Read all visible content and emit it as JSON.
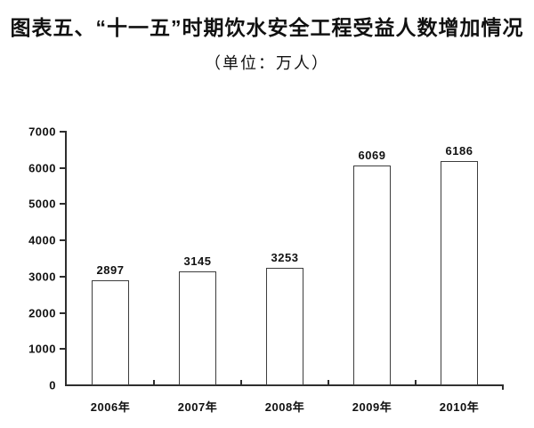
{
  "header": {
    "title": "图表五、“十一五”时期饮水安全工程受益人数增加情况",
    "subtitle": "（单位：万人）"
  },
  "chart_data": {
    "type": "bar",
    "title": "图表五、“十一五”时期饮水安全工程受益人数增加情况",
    "unit_label": "（单位：万人）",
    "categories": [
      "2006年",
      "2007年",
      "2008年",
      "2009年",
      "2010年"
    ],
    "values": [
      2897,
      3145,
      3253,
      6069,
      6186
    ],
    "xlabel": "",
    "ylabel": "",
    "ylim": [
      0,
      7000
    ],
    "ytick_interval": 1000,
    "ytick_labels": [
      "0",
      "1000",
      "2000",
      "3000",
      "4000",
      "5000",
      "6000",
      "7000"
    ],
    "grid": false,
    "legend_position": "none",
    "bar_fill": "#ffffff",
    "bar_border": "#3d3d3d",
    "axis_color": "#2e2e2e",
    "text_color": "#111111"
  }
}
